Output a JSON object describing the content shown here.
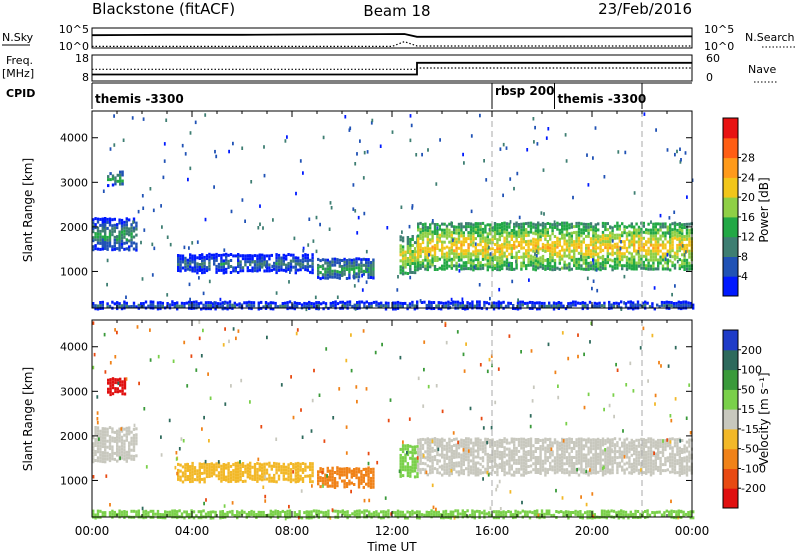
{
  "header": {
    "station": "Blackstone (fitACF)",
    "beam": "Beam 18",
    "date": "23/Feb/2016"
  },
  "status_panels": {
    "nsky_label": "N.Sky",
    "nsearch_label": "N.Search",
    "freq_label": "Freq.",
    "freq_unit": "[MHz]",
    "nave_label": "Nave",
    "cpid_label": "CPID",
    "nsky_ticks": [
      "10^5",
      "10^0"
    ],
    "nsearch_ticks": [
      "10^5",
      "10^0"
    ],
    "freq_ticks": [
      "18",
      "8"
    ],
    "nave_ticks": [
      "60",
      "0"
    ],
    "cpid_segments": [
      {
        "start": 0,
        "end": 16,
        "label": "themis -3300"
      },
      {
        "start": 16,
        "end": 18.5,
        "label": "rbsp 200"
      },
      {
        "start": 18.5,
        "end": 24,
        "label": "themis -3300"
      }
    ]
  },
  "axes": {
    "x_label": "Time UT",
    "x_ticks": [
      "00:00",
      "04:00",
      "08:00",
      "12:00",
      "16:00",
      "20:00",
      "00:00"
    ],
    "y_label": "Slant Range [km]",
    "y_ticks": [
      "1000",
      "2000",
      "3000",
      "4000"
    ]
  },
  "colorbars": {
    "power": {
      "label": "Power [dB]",
      "ticks": [
        "4",
        "8",
        "12",
        "16",
        "20",
        "24",
        "28"
      ],
      "colors": [
        "#0019ff",
        "#2052b5",
        "#3e7e72",
        "#22a845",
        "#8fcf45",
        "#f2c61a",
        "#ff9a1a",
        "#ff5e14",
        "#e81212"
      ]
    },
    "velocity": {
      "label": "Velocity [m s⁻¹]",
      "ticks": [
        "200",
        "100",
        "50",
        "15",
        "-15",
        "-50",
        "-100",
        "-200"
      ],
      "colors": [
        "#1f3cc8",
        "#2e6a5c",
        "#3a9a3a",
        "#7ad04a",
        "#c8c8be",
        "#f2b828",
        "#f08218",
        "#e84a12",
        "#e00f0f"
      ]
    }
  },
  "chart_data": [
    {
      "type": "line",
      "title": "N.Sky / N.Search",
      "xlim": [
        0,
        24
      ],
      "series": [
        {
          "name": "N.Sky",
          "style": "solid",
          "x": [
            0,
            3,
            6,
            9,
            12.5,
            13,
            24
          ],
          "values": [
            3.2,
            3.3,
            3.3,
            3.4,
            3.5,
            2.8,
            2.9
          ]
        },
        {
          "name": "N.Search",
          "style": "dotted",
          "x": [
            0,
            12,
            12.5,
            13,
            24
          ],
          "values": [
            0.4,
            0.4,
            1.6,
            0.5,
            0.5
          ]
        }
      ]
    },
    {
      "type": "line",
      "title": "Freq. / Nave",
      "xlim": [
        0,
        24
      ],
      "series": [
        {
          "name": "Freq.",
          "style": "solid",
          "x": [
            0,
            13,
            13,
            24
          ],
          "values": [
            10.5,
            10.5,
            15,
            15
          ]
        },
        {
          "name": "Nave",
          "style": "dotted",
          "x": [
            0,
            13,
            13,
            24
          ],
          "values": [
            27,
            27,
            30,
            30
          ]
        }
      ]
    },
    {
      "type": "heatmap",
      "title": "Power [dB]",
      "xlabel": "Time UT",
      "ylabel": "Slant Range [km]",
      "xlim": [
        0,
        24
      ],
      "ylim": [
        180,
        4600
      ],
      "regions": [
        {
          "t0": 0.0,
          "t1": 1.8,
          "r0": 1500,
          "r1": 2200,
          "level": 10
        },
        {
          "t0": 0.6,
          "t1": 1.2,
          "r0": 2950,
          "r1": 3250,
          "level": 12
        },
        {
          "t0": 3.4,
          "t1": 8.8,
          "r0": 1000,
          "r1": 1400,
          "level": 7
        },
        {
          "t0": 9.0,
          "t1": 11.3,
          "r0": 850,
          "r1": 1300,
          "level": 11
        },
        {
          "t0": 12.3,
          "t1": 13.0,
          "r0": 950,
          "r1": 1800,
          "level": 18
        },
        {
          "t0": 13.0,
          "t1": 24.0,
          "r0": 1050,
          "r1": 2100,
          "level": 20
        },
        {
          "t0": 0.0,
          "t1": 24.0,
          "r0": 190,
          "r1": 330,
          "level": 6
        }
      ]
    },
    {
      "type": "heatmap",
      "title": "Velocity [m s⁻¹]",
      "xlabel": "Time UT",
      "ylabel": "Slant Range [km]",
      "xlim": [
        0,
        24
      ],
      "ylim": [
        180,
        4600
      ],
      "regions": [
        {
          "t0": 0.0,
          "t1": 1.8,
          "r0": 1450,
          "r1": 2200,
          "level": 0
        },
        {
          "t0": 0.6,
          "t1": 1.3,
          "r0": 2950,
          "r1": 3300,
          "level": -220
        },
        {
          "t0": 3.4,
          "t1": 8.8,
          "r0": 1000,
          "r1": 1400,
          "level": -30
        },
        {
          "t0": 9.0,
          "t1": 11.3,
          "r0": 850,
          "r1": 1300,
          "level": -60
        },
        {
          "t0": 12.3,
          "t1": 13.0,
          "r0": 1100,
          "r1": 1800,
          "level": 30
        },
        {
          "t0": 13.0,
          "t1": 24.0,
          "r0": 1150,
          "r1": 1950,
          "level": 0
        },
        {
          "t0": 0.0,
          "t1": 24.0,
          "r0": 190,
          "r1": 330,
          "level": 30
        }
      ]
    }
  ]
}
